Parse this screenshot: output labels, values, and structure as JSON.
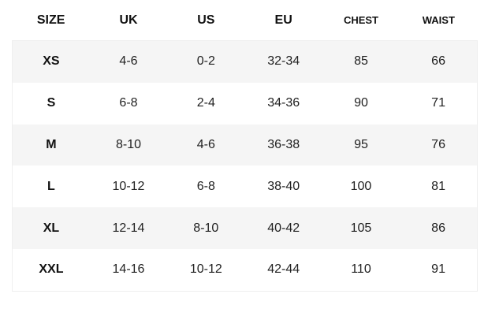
{
  "table": {
    "columns": [
      "SIZE",
      "UK",
      "US",
      "EU",
      "CHEST",
      "WAIST"
    ],
    "rows": [
      [
        "XS",
        "4-6",
        "0-2",
        "32-34",
        85,
        66
      ],
      [
        "S",
        "6-8",
        "2-4",
        "34-36",
        90,
        71
      ],
      [
        "M",
        "8-10",
        "4-6",
        "36-38",
        95,
        76
      ],
      [
        "L",
        "10-12",
        "6-8",
        "38-40",
        100,
        81
      ],
      [
        "XL",
        "12-14",
        "8-10",
        "40-42",
        105,
        86
      ],
      [
        "XXL",
        "14-16",
        "10-12",
        "42-44",
        110,
        91
      ]
    ]
  }
}
